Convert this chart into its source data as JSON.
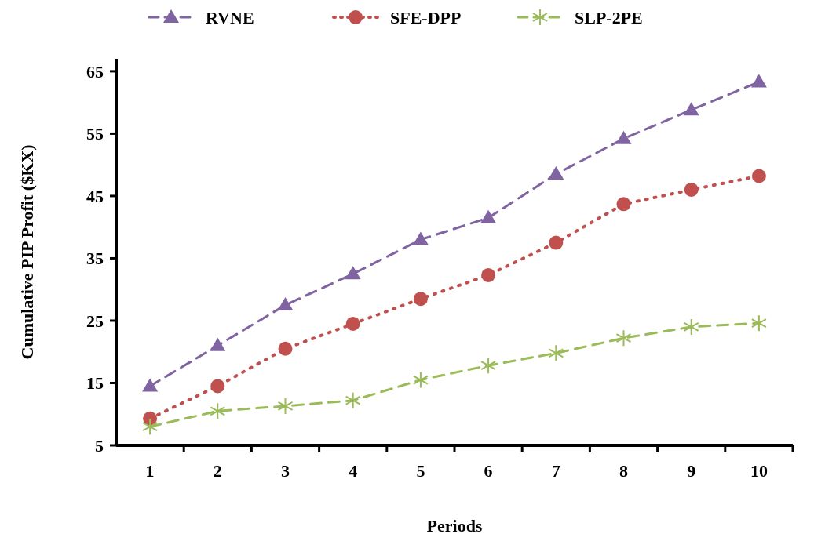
{
  "chart_data": {
    "type": "line",
    "xlabel": "Periods",
    "ylabel": "Cumulative PIP Profit ($KX)",
    "categories": [
      "1",
      "2",
      "3",
      "4",
      "5",
      "6",
      "7",
      "8",
      "9",
      "10"
    ],
    "series": [
      {
        "name": "RVNE",
        "color": "#8064a2",
        "marker": "triangle",
        "line_style": "dashed",
        "values": [
          14.5,
          21,
          27.5,
          32.5,
          38,
          41.5,
          48.5,
          54.2,
          58.8,
          63.3
        ]
      },
      {
        "name": "SFE-DPP",
        "color": "#c0504d",
        "marker": "circle",
        "line_style": "dotted",
        "values": [
          9.3,
          14.5,
          20.5,
          24.5,
          28.5,
          32.3,
          37.5,
          43.7,
          46,
          48.2
        ]
      },
      {
        "name": "SLP-2PE",
        "color": "#9bbb59",
        "marker": "cross",
        "line_style": "dashed",
        "values": [
          8,
          10.5,
          11.3,
          12.2,
          15.5,
          17.8,
          19.8,
          22.2,
          24,
          24.6
        ]
      }
    ],
    "ylim": [
      5,
      67
    ],
    "yticks": [
      5,
      15,
      25,
      35,
      45,
      55,
      65
    ],
    "grid": false,
    "legend": "top"
  }
}
